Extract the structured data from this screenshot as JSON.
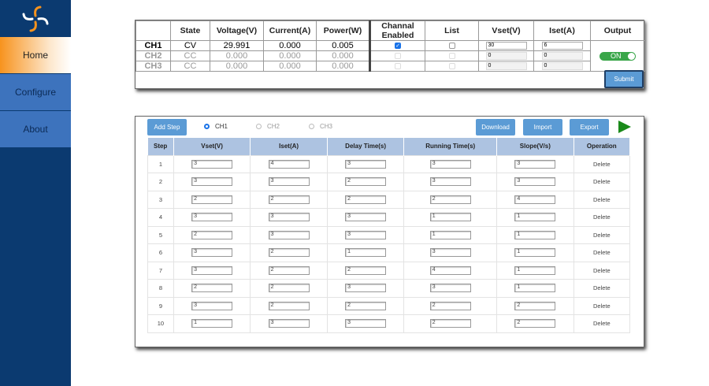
{
  "sidebar": {
    "items": [
      {
        "label": "Home",
        "active": true
      },
      {
        "label": "Configure"
      },
      {
        "label": "About"
      }
    ],
    "logo_colors": [
      "#f7931e",
      "#ffffff"
    ]
  },
  "status": {
    "headers": [
      "",
      "State",
      "Voltage(V)",
      "Current(A)",
      "Power(W)",
      "Channal Enabled",
      "List",
      "Vset(V)",
      "Iset(A)",
      "Output"
    ],
    "rows": [
      {
        "ch": "CH1",
        "state": "CV",
        "voltage": "29.991",
        "current": "0.000",
        "power": "0.005",
        "enabled": true,
        "list": false,
        "vset": "30",
        "iset": "6"
      },
      {
        "ch": "CH2",
        "state": "CC",
        "voltage": "0.000",
        "current": "0.000",
        "power": "0.000",
        "enabled": false,
        "list": false,
        "vset": "0",
        "iset": "0"
      },
      {
        "ch": "CH3",
        "state": "CC",
        "voltage": "0.000",
        "current": "0.000",
        "power": "0.000",
        "enabled": false,
        "list": false,
        "vset": "0",
        "iset": "0"
      }
    ],
    "output_label": "ON",
    "output_on": true,
    "submit_label": "Submit"
  },
  "list": {
    "add_step_label": "Add Step",
    "channels": [
      {
        "label": "CH1",
        "selected": true
      },
      {
        "label": "CH2"
      },
      {
        "label": "CH3"
      }
    ],
    "download_label": "Download",
    "import_label": "Import",
    "export_label": "Export",
    "headers": [
      "Step",
      "Vset(V)",
      "Iset(A)",
      "Delay Time(s)",
      "Running Time(s)",
      "Slope(V/s)",
      "Operation"
    ],
    "delete_label": "Delete",
    "rows": [
      [
        "1",
        "3",
        "4",
        "3",
        "3",
        "3"
      ],
      [
        "2",
        "3",
        "3",
        "2",
        "3",
        "3"
      ],
      [
        "3",
        "2",
        "2",
        "2",
        "2",
        "4"
      ],
      [
        "4",
        "3",
        "3",
        "3",
        "1",
        "1"
      ],
      [
        "5",
        "2",
        "3",
        "3",
        "1",
        "1"
      ],
      [
        "6",
        "3",
        "2",
        "1",
        "3",
        "1"
      ],
      [
        "7",
        "3",
        "2",
        "2",
        "4",
        "1"
      ],
      [
        "8",
        "2",
        "2",
        "3",
        "3",
        "1"
      ],
      [
        "9",
        "3",
        "2",
        "2",
        "2",
        "2"
      ],
      [
        "10",
        "1",
        "3",
        "3",
        "2",
        "2"
      ]
    ]
  },
  "colors": {
    "sidebar": "#0b3a70",
    "accent": "#f7931e",
    "button": "#5b9bd5",
    "header": "#adc3e1",
    "on": "#3aa64a"
  }
}
